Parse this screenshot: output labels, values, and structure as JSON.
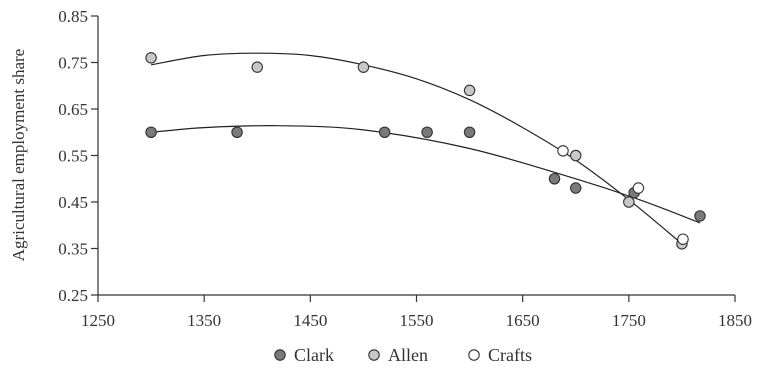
{
  "chart_data": {
    "type": "scatter",
    "title": "",
    "xlabel": "",
    "ylabel": "Agricultural employment share",
    "xlim": [
      1250,
      1850
    ],
    "ylim": [
      0.25,
      0.85
    ],
    "x_ticks": [
      1250,
      1350,
      1450,
      1550,
      1650,
      1750,
      1850
    ],
    "y_ticks": [
      0.25,
      0.35,
      0.45,
      0.55,
      0.65,
      0.75,
      0.85
    ],
    "x_tick_labels": [
      "1250",
      "1350",
      "1450",
      "1550",
      "1650",
      "1750",
      "1850"
    ],
    "y_tick_labels": [
      "0.25",
      "0.35",
      "0.45",
      "0.55",
      "0.65",
      "0.75",
      "0.85"
    ],
    "grid": false,
    "legend_position": "bottom",
    "series": [
      {
        "name": "Clark",
        "color": "#7a7a7a",
        "points": [
          {
            "x": 1300,
            "y": 0.6
          },
          {
            "x": 1381,
            "y": 0.6
          },
          {
            "x": 1520,
            "y": 0.6
          },
          {
            "x": 1560,
            "y": 0.6
          },
          {
            "x": 1600,
            "y": 0.6
          },
          {
            "x": 1680,
            "y": 0.5
          },
          {
            "x": 1700,
            "y": 0.48
          },
          {
            "x": 1755,
            "y": 0.47
          },
          {
            "x": 1817,
            "y": 0.42
          }
        ],
        "trend": [
          {
            "x": 1300,
            "y": 0.6
          },
          {
            "x": 1350,
            "y": 0.61
          },
          {
            "x": 1420,
            "y": 0.614
          },
          {
            "x": 1500,
            "y": 0.605
          },
          {
            "x": 1600,
            "y": 0.565
          },
          {
            "x": 1700,
            "y": 0.5
          },
          {
            "x": 1760,
            "y": 0.455
          },
          {
            "x": 1817,
            "y": 0.405
          }
        ]
      },
      {
        "name": "Allen",
        "color": "#c8c8c8",
        "points": [
          {
            "x": 1300,
            "y": 0.76
          },
          {
            "x": 1400,
            "y": 0.74
          },
          {
            "x": 1500,
            "y": 0.74
          },
          {
            "x": 1600,
            "y": 0.69
          },
          {
            "x": 1700,
            "y": 0.55
          },
          {
            "x": 1750,
            "y": 0.45
          },
          {
            "x": 1800,
            "y": 0.36
          }
        ],
        "trend": [
          {
            "x": 1300,
            "y": 0.745
          },
          {
            "x": 1350,
            "y": 0.765
          },
          {
            "x": 1400,
            "y": 0.77
          },
          {
            "x": 1450,
            "y": 0.765
          },
          {
            "x": 1500,
            "y": 0.745
          },
          {
            "x": 1550,
            "y": 0.715
          },
          {
            "x": 1600,
            "y": 0.67
          },
          {
            "x": 1650,
            "y": 0.61
          },
          {
            "x": 1700,
            "y": 0.54
          },
          {
            "x": 1750,
            "y": 0.455
          },
          {
            "x": 1800,
            "y": 0.36
          }
        ]
      },
      {
        "name": "Crafts",
        "color": "#ffffff",
        "points": [
          {
            "x": 1688,
            "y": 0.56
          },
          {
            "x": 1759,
            "y": 0.48
          },
          {
            "x": 1801,
            "y": 0.37
          }
        ]
      }
    ]
  }
}
